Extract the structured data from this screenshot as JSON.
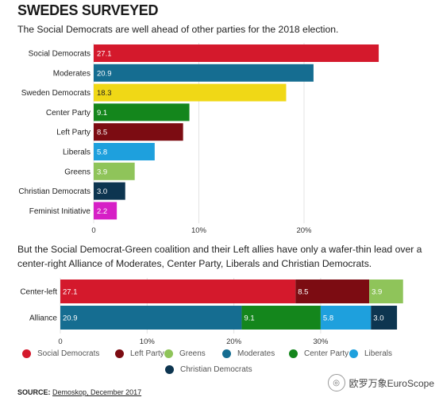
{
  "header": {
    "title": "SWEDES SURVEYED",
    "subtitle1": "The Social Democrats are well ahead of other parties for the 2018 election.",
    "subtitle2": "But the Social Democrat-Green coalition and their Left allies have only a wafer-thin lead over a center-right Alliance of Moderates, Center Party, Liberals and Christian Democrats."
  },
  "chart_data": [
    {
      "type": "bar",
      "orientation": "horizontal",
      "categories": [
        "Social Democrats",
        "Moderates",
        "Sweden Democrats",
        "Center Party",
        "Left Party",
        "Liberals",
        "Greens",
        "Christian Democrats",
        "Feminist Initiative"
      ],
      "values": [
        27.1,
        20.9,
        18.3,
        9.1,
        8.5,
        5.8,
        3.9,
        3.0,
        2.2
      ],
      "value_labels": [
        "27.1",
        "20.9",
        "18.3",
        "9.1",
        "8.5",
        "5.8",
        "3.9",
        "3.0",
        "2.2"
      ],
      "colors": [
        "#d4192c",
        "#156d91",
        "#f0d816",
        "#14861c",
        "#7c0c12",
        "#1ea0dd",
        "#8fc45a",
        "#0d3550",
        "#d61fc6"
      ],
      "xlim": [
        0,
        30
      ],
      "xticks": [
        "0",
        "10%",
        "20%"
      ],
      "xtick_values": [
        0,
        10,
        20
      ],
      "grid": true
    },
    {
      "type": "bar",
      "orientation": "horizontal",
      "stacked": true,
      "categories": [
        "Center-left",
        "Alliance"
      ],
      "series": [
        {
          "name": "Social Democrats",
          "values": [
            27.1,
            null
          ],
          "labels": [
            "27.1",
            ""
          ],
          "color": "#d4192c"
        },
        {
          "name": "Left Party",
          "values": [
            8.5,
            null
          ],
          "labels": [
            "8.5",
            ""
          ],
          "color": "#7c0c12"
        },
        {
          "name": "Greens",
          "values": [
            3.9,
            null
          ],
          "labels": [
            "3.9",
            ""
          ],
          "color": "#8fc45a"
        },
        {
          "name": "Moderates",
          "values": [
            null,
            20.9
          ],
          "labels": [
            "",
            "20.9"
          ],
          "color": "#156d91"
        },
        {
          "name": "Center Party",
          "values": [
            null,
            9.1
          ],
          "labels": [
            "",
            "9.1"
          ],
          "color": "#14861c"
        },
        {
          "name": "Liberals",
          "values": [
            null,
            5.8
          ],
          "labels": [
            "",
            "5.8"
          ],
          "color": "#1ea0dd"
        },
        {
          "name": "Christian Democrats",
          "values": [
            null,
            3.0
          ],
          "labels": [
            "",
            "3.0"
          ],
          "color": "#0d3550"
        }
      ],
      "xlim": [
        0,
        40
      ],
      "xticks": [
        "0",
        "10%",
        "20%",
        "30%"
      ],
      "xtick_values": [
        0,
        10,
        20,
        30
      ],
      "grid": true
    }
  ],
  "legend": [
    {
      "name": "Social Democrats",
      "color": "#d4192c"
    },
    {
      "name": "Left Party",
      "color": "#7c0c12"
    },
    {
      "name": "Greens",
      "color": "#8fc45a"
    },
    {
      "name": "Moderates",
      "color": "#156d91"
    },
    {
      "name": "Center Party",
      "color": "#14861c"
    },
    {
      "name": "Liberals",
      "color": "#1ea0dd"
    },
    {
      "name": "Christian Democrats",
      "color": "#0d3550"
    }
  ],
  "footer": {
    "source_label": "SOURCE:",
    "source_text": "Demoskop, December 2017",
    "watermark": "欧罗万象EuroScope"
  }
}
